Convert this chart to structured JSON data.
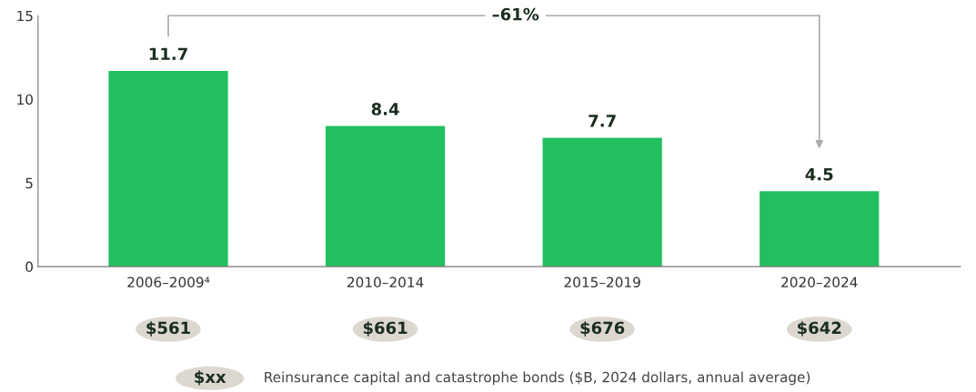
{
  "chart_data": {
    "type": "bar",
    "categories": [
      "2006–2009⁴",
      "2010–2014",
      "2015–2019",
      "2020–2024"
    ],
    "values": [
      11.7,
      8.4,
      7.7,
      4.5
    ],
    "color": "#22bf5f",
    "ylim": [
      0,
      15
    ],
    "yticks": [
      0,
      5,
      10,
      15
    ],
    "grid": false,
    "data_labels": true,
    "annotations": [
      "–61%",
      "$561",
      "$661",
      "$676",
      "$642",
      "$xx",
      "Reinsurance capital and catastrophe bonds ($B, 2024 dollars, annual average)"
    ]
  }
}
